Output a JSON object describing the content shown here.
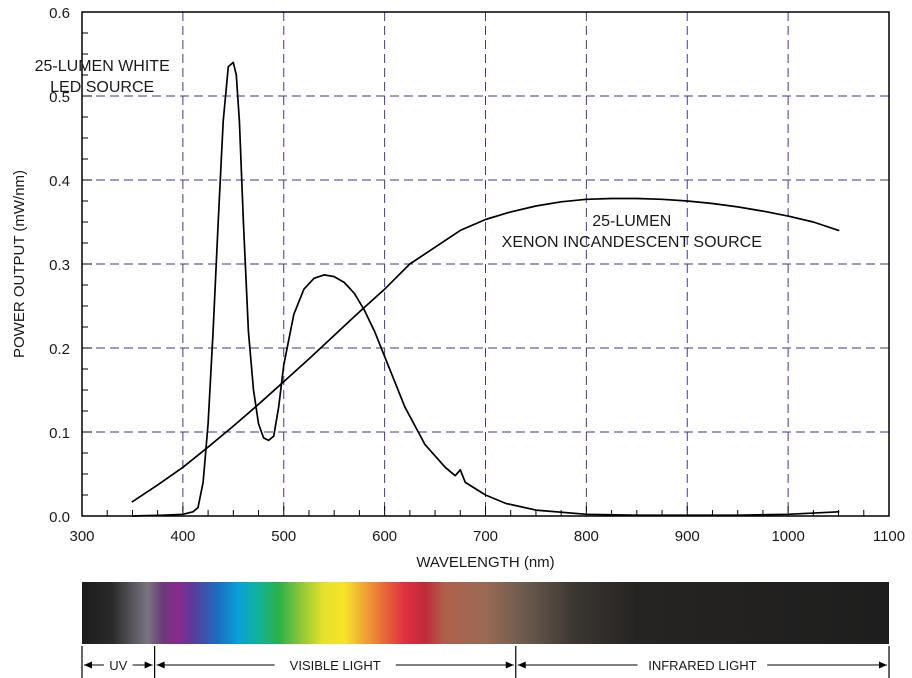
{
  "chart_data": {
    "type": "line",
    "xlabel": "WAVELENGTH  (nm)",
    "ylabel": "POWER  OUTPUT  (mW/nm)",
    "xlim": [
      300,
      1100
    ],
    "ylim": [
      0,
      0.6
    ],
    "xticks": [
      "300",
      "400",
      "500",
      "600",
      "700",
      "800",
      "900",
      "1000",
      "1100"
    ],
    "yticks": [
      "0.0",
      "0.1",
      "0.2",
      "0.3",
      "0.4",
      "0.5",
      "0.6"
    ],
    "grid": true,
    "series": [
      {
        "name": "25-LUMEN WHITE LED SOURCE",
        "color": "#000000",
        "x": [
          350,
          380,
          400,
          410,
          415,
          420,
          425,
          430,
          435,
          440,
          445,
          450,
          453,
          456,
          460,
          465,
          470,
          475,
          480,
          485,
          490,
          495,
          500,
          510,
          520,
          530,
          540,
          550,
          560,
          570,
          580,
          590,
          600,
          620,
          640,
          660,
          670,
          675,
          680,
          700,
          720,
          750,
          800,
          850,
          900,
          950,
          1000,
          1050
        ],
        "y": [
          0.0,
          0.001,
          0.002,
          0.005,
          0.01,
          0.04,
          0.11,
          0.22,
          0.35,
          0.47,
          0.535,
          0.54,
          0.525,
          0.47,
          0.35,
          0.22,
          0.15,
          0.11,
          0.093,
          0.09,
          0.095,
          0.13,
          0.18,
          0.24,
          0.27,
          0.283,
          0.287,
          0.285,
          0.278,
          0.265,
          0.245,
          0.22,
          0.19,
          0.13,
          0.085,
          0.058,
          0.048,
          0.055,
          0.04,
          0.025,
          0.015,
          0.007,
          0.002,
          0.001,
          0.001,
          0.001,
          0.002,
          0.005
        ]
      },
      {
        "name": "25-LUMEN XENON INCANDESCENT SOURCE",
        "color": "#000000",
        "x": [
          350,
          375,
          400,
          425,
          450,
          475,
          500,
          525,
          550,
          575,
          600,
          625,
          650,
          675,
          700,
          725,
          750,
          775,
          800,
          825,
          850,
          875,
          900,
          925,
          950,
          975,
          1000,
          1025,
          1050
        ],
        "y": [
          0.017,
          0.037,
          0.058,
          0.082,
          0.107,
          0.133,
          0.16,
          0.187,
          0.215,
          0.243,
          0.27,
          0.3,
          0.32,
          0.34,
          0.353,
          0.362,
          0.369,
          0.374,
          0.377,
          0.378,
          0.378,
          0.377,
          0.375,
          0.372,
          0.368,
          0.363,
          0.357,
          0.35,
          0.34
        ]
      }
    ],
    "annotations": [
      {
        "lines": [
          "25-LUMEN WHITE",
          "LED SOURCE"
        ],
        "anchor_x": 320,
        "anchor_y": 0.53
      },
      {
        "lines": [
          "25-LUMEN",
          "XENON INCANDESCENT SOURCE"
        ],
        "anchor_x": 845,
        "anchor_y": 0.345
      }
    ],
    "spectrum": {
      "stops": [
        {
          "nm": 300,
          "color": "#1c1c1c"
        },
        {
          "nm": 330,
          "color": "#2a2a2a"
        },
        {
          "nm": 365,
          "color": "#7a7580"
        },
        {
          "nm": 380,
          "color": "#6b3a7a"
        },
        {
          "nm": 395,
          "color": "#8a2a8c"
        },
        {
          "nm": 410,
          "color": "#5a3a9c"
        },
        {
          "nm": 435,
          "color": "#1a6fc0"
        },
        {
          "nm": 455,
          "color": "#0aa0d8"
        },
        {
          "nm": 475,
          "color": "#12b39a"
        },
        {
          "nm": 495,
          "color": "#29b04a"
        },
        {
          "nm": 515,
          "color": "#86c43a"
        },
        {
          "nm": 540,
          "color": "#e6e22a"
        },
        {
          "nm": 560,
          "color": "#f6e32a"
        },
        {
          "nm": 580,
          "color": "#f0a435"
        },
        {
          "nm": 600,
          "color": "#e8683a"
        },
        {
          "nm": 620,
          "color": "#e03040"
        },
        {
          "nm": 640,
          "color": "#c02a3a"
        },
        {
          "nm": 660,
          "color": "#b0604a"
        },
        {
          "nm": 700,
          "color": "#9a6a55"
        },
        {
          "nm": 740,
          "color": "#6a5a4e"
        },
        {
          "nm": 790,
          "color": "#3a3530"
        },
        {
          "nm": 850,
          "color": "#262422"
        },
        {
          "nm": 1100,
          "color": "#1e1e1e"
        }
      ],
      "regions": [
        {
          "label": "UV",
          "from": 300,
          "to": 372
        },
        {
          "label": "VISIBLE LIGHT",
          "from": 372,
          "to": 730
        },
        {
          "label": "INFRARED LIGHT",
          "from": 730,
          "to": 1100
        }
      ]
    },
    "colors": {
      "grid": "#3a3a9a",
      "axis": "#000000",
      "curve": "#000000"
    }
  }
}
